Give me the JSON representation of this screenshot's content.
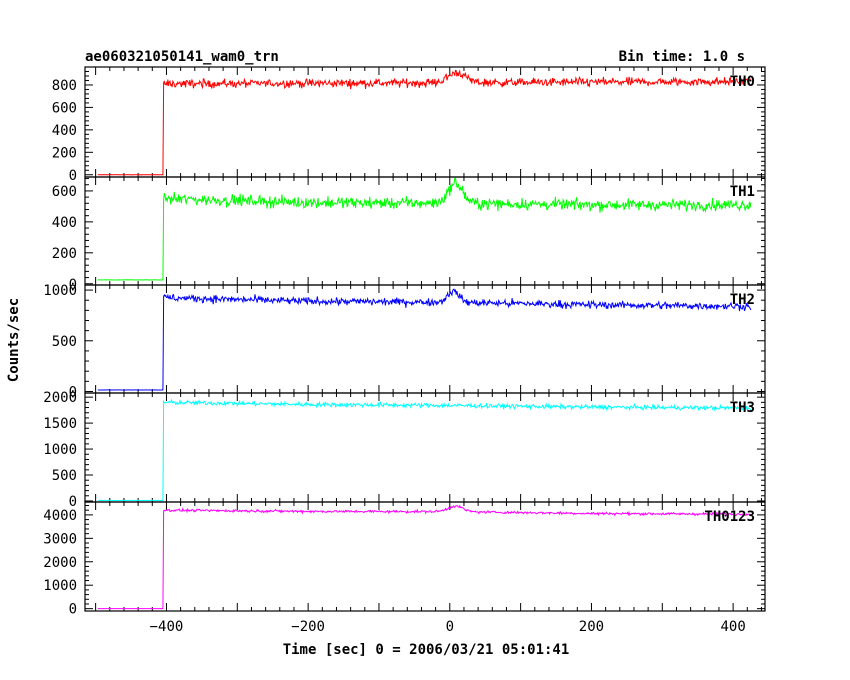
{
  "header": {
    "title": "ae060321050141_wam0_trn",
    "bin_time": "Bin time: 1.0 s"
  },
  "axes": {
    "xlabel": "Time [sec] 0 = 2006/03/21 05:01:41",
    "ylabel": "Counts/sec"
  },
  "chart_data": {
    "type": "line",
    "title": "ae060321050141_wam0_trn",
    "xlabel": "Time [sec] 0 = 2006/03/21 05:01:41",
    "ylabel": "Counts/sec",
    "xlim": [
      -515,
      445
    ],
    "x_ticks": [
      -400,
      -200,
      0,
      200,
      400
    ],
    "x_tick_labels": [
      "−400",
      "−200",
      "0",
      "200",
      "400"
    ],
    "grid": false,
    "legend": "none",
    "data_x_range": [
      -497,
      425
    ],
    "step_time": -404,
    "panels": [
      {
        "name": "TH0",
        "color": "#ff0000",
        "ylim": [
          -20,
          960
        ],
        "yticks": [
          0,
          200,
          400,
          600,
          800
        ],
        "yticklabels": [
          "0",
          "200",
          "400",
          "600",
          "800"
        ],
        "pre_level": 0,
        "level_points": [
          [
            -404,
            810
          ],
          [
            -200,
            815
          ],
          [
            0,
            820
          ],
          [
            200,
            825
          ],
          [
            425,
            830
          ]
        ],
        "noise": 35,
        "flare": {
          "time": 10,
          "peak": 910,
          "width": 12
        }
      },
      {
        "name": "TH1",
        "color": "#00ff00",
        "ylim": [
          -8,
          690
        ],
        "yticks": [
          0,
          200,
          400,
          600
        ],
        "yticklabels": [
          "0",
          "200",
          "400",
          "600"
        ],
        "pre_level": 25,
        "level_points": [
          [
            -404,
            550
          ],
          [
            -200,
            525
          ],
          [
            0,
            520
          ],
          [
            200,
            510
          ],
          [
            425,
            510
          ]
        ],
        "noise": 35,
        "flare": {
          "time": 8,
          "peak": 650,
          "width": 10
        }
      },
      {
        "name": "TH2",
        "color": "#0000ff",
        "ylim": [
          -15,
          1050
        ],
        "yticks": [
          0,
          500,
          1000
        ],
        "yticklabels": [
          "0",
          "500",
          "1000"
        ],
        "pre_level": 15,
        "level_points": [
          [
            -404,
            925
          ],
          [
            -200,
            890
          ],
          [
            0,
            880
          ],
          [
            200,
            855
          ],
          [
            425,
            840
          ]
        ],
        "noise": 35,
        "flare": {
          "time": 5,
          "peak": 990,
          "width": 8
        }
      },
      {
        "name": "TH3",
        "color": "#00ffff",
        "ylim": [
          -20,
          2080
        ],
        "yticks": [
          0,
          500,
          1000,
          1500,
          2000
        ],
        "yticklabels": [
          "0",
          "500",
          "1000",
          "1500",
          "2000"
        ],
        "pre_level": 10,
        "level_points": [
          [
            -404,
            1900
          ],
          [
            -200,
            1860
          ],
          [
            0,
            1840
          ],
          [
            200,
            1810
          ],
          [
            425,
            1790
          ]
        ],
        "noise": 40,
        "flare": null
      },
      {
        "name": "TH0123",
        "color": "#ff00ff",
        "ylim": [
          -100,
          4550
        ],
        "yticks": [
          0,
          1000,
          2000,
          3000,
          4000
        ],
        "yticklabels": [
          "0",
          "1000",
          "2000",
          "3000",
          "4000"
        ],
        "pre_level": 0,
        "level_points": [
          [
            -404,
            4200
          ],
          [
            -200,
            4150
          ],
          [
            0,
            4140
          ],
          [
            200,
            4060
          ],
          [
            425,
            4030
          ]
        ],
        "noise": 50,
        "flare": {
          "time": 8,
          "peak": 4380,
          "width": 10
        }
      }
    ]
  }
}
